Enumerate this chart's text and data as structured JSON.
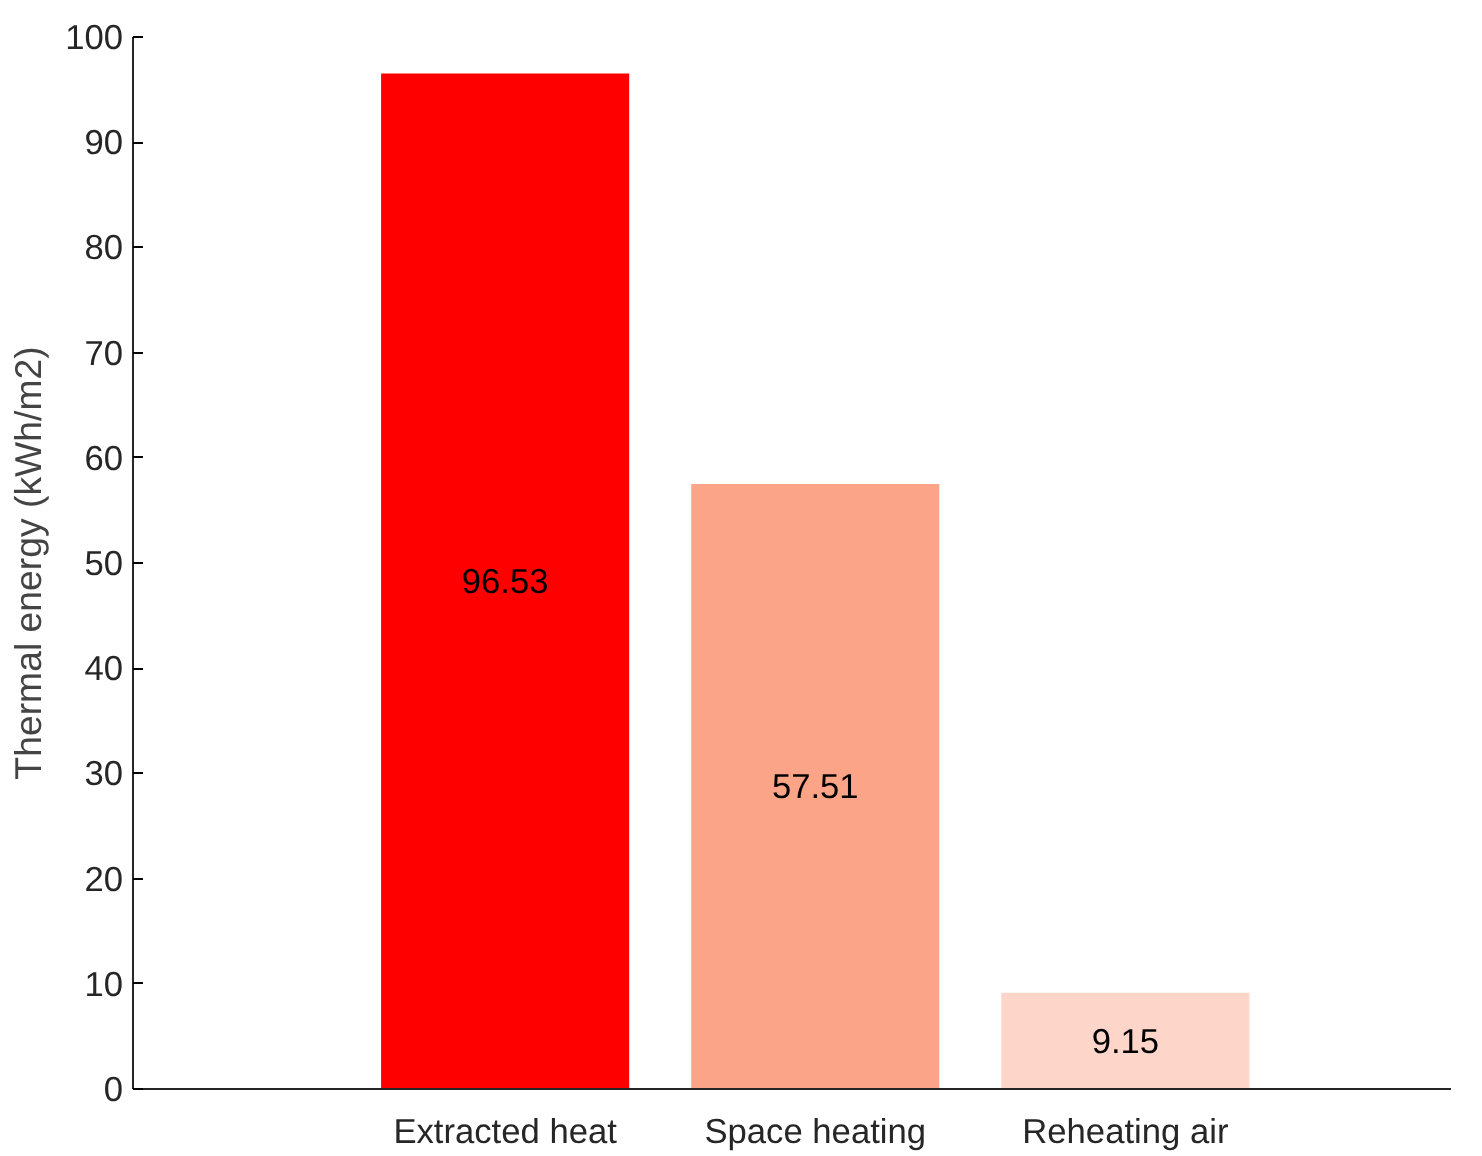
{
  "chart_data": {
    "type": "bar",
    "ylabel": "Thermal energy (kWh/m2)",
    "categories": [
      "Extracted heat",
      "Space heating",
      "Reheating air"
    ],
    "values": [
      96.53,
      57.51,
      9.15
    ],
    "colors": [
      "#ff0000",
      "#fca487",
      "#fdd6c9"
    ],
    "ylim": [
      0,
      100
    ],
    "yticks": [
      0,
      10,
      20,
      30,
      40,
      50,
      60,
      70,
      80,
      90,
      100
    ],
    "data_labels": true,
    "grid": false
  }
}
